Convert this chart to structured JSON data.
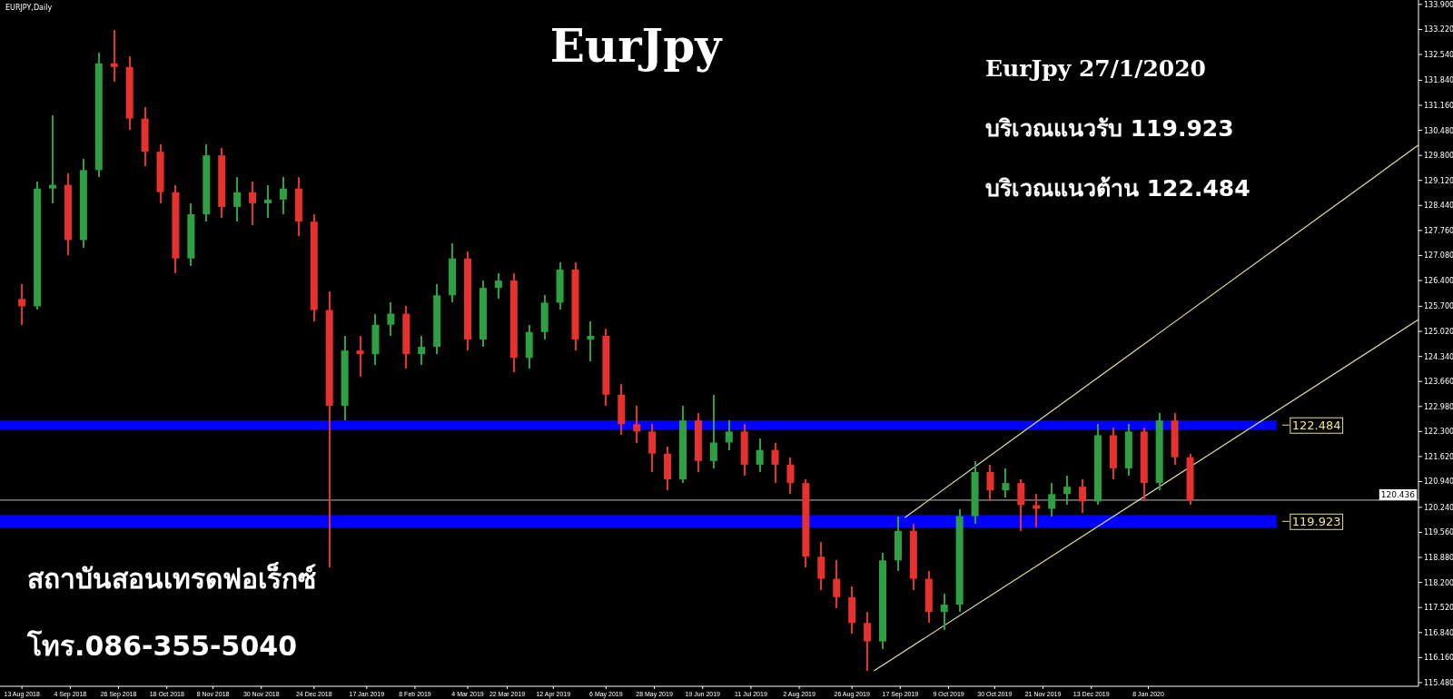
{
  "chart_data": {
    "type": "candlestick",
    "title": "EurJpy",
    "subtitle": "EURJPY,Daily",
    "annotations": [
      "EurJpy 27/1/2020",
      "บริเวณแนวรับ 119.923",
      "บริเวณแนวต้าน 122.484",
      "สถาบันสอนเทรดฟอเร็กซ์",
      "โทร.086-355-5040"
    ],
    "x": [
      "2018-08-13",
      "2018-08-20",
      "2018-08-27",
      "2018-09-03",
      "2018-09-10",
      "2018-09-17",
      "2018-09-24",
      "2018-10-01",
      "2018-10-08",
      "2018-10-15",
      "2018-10-22",
      "2018-10-29",
      "2018-11-05",
      "2018-11-12",
      "2018-11-19",
      "2018-11-26",
      "2018-12-03",
      "2018-12-10",
      "2018-12-17",
      "2018-12-24",
      "2018-12-31",
      "2019-01-07",
      "2019-01-14",
      "2019-01-21",
      "2019-01-28",
      "2019-02-04",
      "2019-02-11",
      "2019-02-18",
      "2019-02-25",
      "2019-03-04",
      "2019-03-11",
      "2019-03-18",
      "2019-03-25",
      "2019-04-01",
      "2019-04-08",
      "2019-04-15",
      "2019-04-22",
      "2019-04-29",
      "2019-05-06",
      "2019-05-13",
      "2019-05-20",
      "2019-05-27",
      "2019-06-03",
      "2019-06-10",
      "2019-06-17",
      "2019-06-24",
      "2019-07-01",
      "2019-07-08",
      "2019-07-15",
      "2019-07-22",
      "2019-07-29",
      "2019-08-05",
      "2019-08-12",
      "2019-08-19",
      "2019-08-26",
      "2019-09-02",
      "2019-09-09",
      "2019-09-16",
      "2019-09-23",
      "2019-09-30",
      "2019-10-07",
      "2019-10-14",
      "2019-10-21",
      "2019-10-28",
      "2019-11-04",
      "2019-11-11",
      "2019-11-18",
      "2019-11-25",
      "2019-12-02",
      "2019-12-09",
      "2019-12-16",
      "2019-12-23",
      "2019-12-30",
      "2020-01-06",
      "2020-01-13",
      "2020-01-20",
      "2020-01-27"
    ],
    "ohlc": [
      [
        125.9,
        126.3,
        125.2,
        125.7
      ],
      [
        125.7,
        129.1,
        125.6,
        128.9
      ],
      [
        128.9,
        130.9,
        128.5,
        129.0
      ],
      [
        129.0,
        129.3,
        127.1,
        127.5
      ],
      [
        127.5,
        129.7,
        127.3,
        129.4
      ],
      [
        129.4,
        132.6,
        129.2,
        132.3
      ],
      [
        132.3,
        133.2,
        131.8,
        132.2
      ],
      [
        132.2,
        132.5,
        130.5,
        130.8
      ],
      [
        130.8,
        131.1,
        129.5,
        129.9
      ],
      [
        129.9,
        130.1,
        128.5,
        128.8
      ],
      [
        128.8,
        129.0,
        126.6,
        127.0
      ],
      [
        127.0,
        128.5,
        126.8,
        128.2
      ],
      [
        128.2,
        130.1,
        128.0,
        129.8
      ],
      [
        129.8,
        130.0,
        128.1,
        128.4
      ],
      [
        128.4,
        129.2,
        128.0,
        128.8
      ],
      [
        128.8,
        129.1,
        127.9,
        128.5
      ],
      [
        128.5,
        129.0,
        128.1,
        128.6
      ],
      [
        128.6,
        129.2,
        128.2,
        128.9
      ],
      [
        128.9,
        129.2,
        127.6,
        128.0
      ],
      [
        128.0,
        128.2,
        125.3,
        125.6
      ],
      [
        125.6,
        126.1,
        118.6,
        123.0
      ],
      [
        123.0,
        124.9,
        122.6,
        124.5
      ],
      [
        124.5,
        124.9,
        123.8,
        124.4
      ],
      [
        124.4,
        125.5,
        124.1,
        125.2
      ],
      [
        125.2,
        125.8,
        124.9,
        125.5
      ],
      [
        125.5,
        125.7,
        124.0,
        124.4
      ],
      [
        124.4,
        124.9,
        124.1,
        124.6
      ],
      [
        124.6,
        126.3,
        124.4,
        126.0
      ],
      [
        126.0,
        127.4,
        125.8,
        127.0
      ],
      [
        127.0,
        127.2,
        124.5,
        124.8
      ],
      [
        124.8,
        126.4,
        124.6,
        126.2
      ],
      [
        126.2,
        126.6,
        125.9,
        126.4
      ],
      [
        126.4,
        126.6,
        123.9,
        124.3
      ],
      [
        124.3,
        125.2,
        124.0,
        125.0
      ],
      [
        125.0,
        126.0,
        124.8,
        125.8
      ],
      [
        125.8,
        126.9,
        125.6,
        126.7
      ],
      [
        126.7,
        126.9,
        124.5,
        124.8
      ],
      [
        124.8,
        125.3,
        124.2,
        124.9
      ],
      [
        124.9,
        125.1,
        123.0,
        123.3
      ],
      [
        123.3,
        123.6,
        122.2,
        122.5
      ],
      [
        122.5,
        123.0,
        122.0,
        122.3
      ],
      [
        122.3,
        122.5,
        121.2,
        121.7
      ],
      [
        121.7,
        121.9,
        120.7,
        121.0
      ],
      [
        121.0,
        123.0,
        120.9,
        122.6
      ],
      [
        122.6,
        122.8,
        121.2,
        121.5
      ],
      [
        121.5,
        123.3,
        121.3,
        122.0
      ],
      [
        122.0,
        122.6,
        121.8,
        122.3
      ],
      [
        122.3,
        122.5,
        121.1,
        121.4
      ],
      [
        121.4,
        122.1,
        121.2,
        121.8
      ],
      [
        121.8,
        122.0,
        120.9,
        121.4
      ],
      [
        121.4,
        121.6,
        120.6,
        120.9
      ],
      [
        120.9,
        121.0,
        118.6,
        118.9
      ],
      [
        118.9,
        119.3,
        118.0,
        118.3
      ],
      [
        118.3,
        118.8,
        117.5,
        117.8
      ],
      [
        117.8,
        118.1,
        116.8,
        117.1
      ],
      [
        117.1,
        117.4,
        115.8,
        116.6
      ],
      [
        116.6,
        119.0,
        116.4,
        118.8
      ],
      [
        118.8,
        120.0,
        118.5,
        119.6
      ],
      [
        119.6,
        119.8,
        118.0,
        118.3
      ],
      [
        118.3,
        118.5,
        117.1,
        117.4
      ],
      [
        117.4,
        117.9,
        116.9,
        117.6
      ],
      [
        117.6,
        120.2,
        117.4,
        120.0
      ],
      [
        120.0,
        121.5,
        119.8,
        121.2
      ],
      [
        121.2,
        121.4,
        120.4,
        120.7
      ],
      [
        120.7,
        121.3,
        120.5,
        120.9
      ],
      [
        120.9,
        121.0,
        119.6,
        120.3
      ],
      [
        120.3,
        120.6,
        119.7,
        120.2
      ],
      [
        120.2,
        120.9,
        120.0,
        120.6
      ],
      [
        120.6,
        121.1,
        120.3,
        120.8
      ],
      [
        120.8,
        121.0,
        120.1,
        120.4
      ],
      [
        120.4,
        122.5,
        120.3,
        122.2
      ],
      [
        122.2,
        122.4,
        121.0,
        121.3
      ],
      [
        121.3,
        122.5,
        121.1,
        122.3
      ],
      [
        122.3,
        122.4,
        120.4,
        120.9
      ],
      [
        120.9,
        122.8,
        120.7,
        122.6
      ],
      [
        122.6,
        122.8,
        121.4,
        121.6
      ],
      [
        121.6,
        121.7,
        120.3,
        120.44
      ]
    ],
    "series": [
      {
        "type": "line",
        "x": [
          "2019-09-05",
          "2020-05-10"
        ],
        "values": [
          115.8,
          125.34
        ],
        "color": "#e6dfa8"
      },
      {
        "type": "line",
        "x": [
          "2019-09-19",
          "2020-05-10"
        ],
        "values": [
          119.96,
          130.08
        ],
        "color": "#e6dfa8"
      }
    ],
    "bands": [
      {
        "axis": "y",
        "from": 122.35,
        "to": 122.6,
        "label": "122.484",
        "color": "#0000ff"
      },
      {
        "axis": "y",
        "from": 119.69,
        "to": 120.03,
        "label": "119.923",
        "color": "#0000ff"
      }
    ],
    "ref_lines": [
      {
        "axis": "y",
        "value": 120.436,
        "label": "120.436",
        "color": "#c0c0c0"
      }
    ],
    "xlim": [
      "2018-08-03",
      "2020-05-10"
    ],
    "xticks": [
      {
        "value": "2018-08-13",
        "label": "13 Aug 2018"
      },
      {
        "value": "2018-09-04",
        "label": "4 Sep 2018"
      },
      {
        "value": "2018-09-26",
        "label": "26 Sep 2018"
      },
      {
        "value": "2018-10-18",
        "label": "18 Oct 2018"
      },
      {
        "value": "2018-11-08",
        "label": "8 Nov 2018"
      },
      {
        "value": "2018-11-30",
        "label": "30 Nov 2018"
      },
      {
        "value": "2018-12-24",
        "label": "24 Dec 2018"
      },
      {
        "value": "2019-01-17",
        "label": "17 Jan 2019"
      },
      {
        "value": "2019-02-08",
        "label": "8 Feb 2019"
      },
      {
        "value": "2019-03-04",
        "label": "4 Mar 2019"
      },
      {
        "value": "2019-03-22",
        "label": "22 Mar 2019"
      },
      {
        "value": "2019-04-12",
        "label": "12 Apr 2019"
      },
      {
        "value": "2019-05-06",
        "label": "6 May 2019"
      },
      {
        "value": "2019-05-28",
        "label": "28 May 2019"
      },
      {
        "value": "2019-06-19",
        "label": "19 Jun 2019"
      },
      {
        "value": "2019-07-11",
        "label": "11 Jul 2019"
      },
      {
        "value": "2019-08-02",
        "label": "2 Aug 2019"
      },
      {
        "value": "2019-08-26",
        "label": "26 Aug 2019"
      },
      {
        "value": "2019-09-17",
        "label": "17 Sep 2019"
      },
      {
        "value": "2019-10-09",
        "label": "9 Oct 2019"
      },
      {
        "value": "2019-10-30",
        "label": "30 Oct 2019"
      },
      {
        "value": "2019-11-21",
        "label": "21 Nov 2019"
      },
      {
        "value": "2019-12-13",
        "label": "13 Dec 2019"
      },
      {
        "value": "2020-01-08",
        "label": "8 Jan 2020"
      }
    ],
    "ylim": [
      115.38,
      134.02
    ],
    "yticks": [
      {
        "value": 133.9,
        "label": "133.900"
      },
      {
        "value": 133.22,
        "label": "133.220"
      },
      {
        "value": 132.54,
        "label": "132.540"
      },
      {
        "value": 131.84,
        "label": "131.840"
      },
      {
        "value": 131.16,
        "label": "131.160"
      },
      {
        "value": 130.48,
        "label": "130.480"
      },
      {
        "value": 129.8,
        "label": "129.800"
      },
      {
        "value": 129.12,
        "label": "129.120"
      },
      {
        "value": 128.44,
        "label": "128.440"
      },
      {
        "value": 127.76,
        "label": "127.760"
      },
      {
        "value": 127.08,
        "label": "127.080"
      },
      {
        "value": 126.4,
        "label": "126.400"
      },
      {
        "value": 125.7,
        "label": "125.700"
      },
      {
        "value": 125.02,
        "label": "125.020"
      },
      {
        "value": 124.34,
        "label": "124.340"
      },
      {
        "value": 123.66,
        "label": "123.660"
      },
      {
        "value": 122.98,
        "label": "122.980"
      },
      {
        "value": 122.3,
        "label": "122.300"
      },
      {
        "value": 121.62,
        "label": "121.620"
      },
      {
        "value": 120.94,
        "label": "120.940"
      },
      {
        "value": 120.24,
        "label": "120.240"
      },
      {
        "value": 119.56,
        "label": "119.560"
      },
      {
        "value": 118.88,
        "label": "118.880"
      },
      {
        "value": 118.2,
        "label": "118.200"
      },
      {
        "value": 117.52,
        "label": "117.520"
      },
      {
        "value": 116.84,
        "label": "116.840"
      },
      {
        "value": 116.16,
        "label": "116.160"
      },
      {
        "value": 115.48,
        "label": "115.480"
      }
    ]
  }
}
